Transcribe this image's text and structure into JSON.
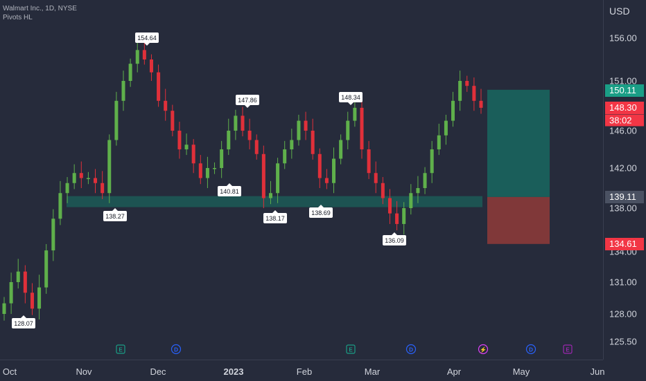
{
  "header": {
    "title": "Walmart Inc., 1D, NYSE",
    "indicator": "Pivots HL"
  },
  "price_axis": {
    "currency": "USD",
    "ticks": [
      "156.00",
      "151.00",
      "146.00",
      "142.00",
      "138.00",
      "134.00",
      "131.00",
      "128.00",
      "125.50"
    ],
    "labels": [
      {
        "value": "150.11",
        "color": "#1a9e86"
      },
      {
        "value": "148.30",
        "color": "#f23645"
      },
      {
        "value": "38:02",
        "color": "#f23645"
      },
      {
        "value": "139.11",
        "color": "#4a5162"
      },
      {
        "value": "134.61",
        "color": "#f23645"
      }
    ]
  },
  "time_axis": {
    "ticks": [
      {
        "label": "Oct",
        "bold": false
      },
      {
        "label": "Nov",
        "bold": false
      },
      {
        "label": "Dec",
        "bold": false
      },
      {
        "label": "2023",
        "bold": true
      },
      {
        "label": "Feb",
        "bold": false
      },
      {
        "label": "Mar",
        "bold": false
      },
      {
        "label": "Apr",
        "bold": false
      },
      {
        "label": "May",
        "bold": false
      },
      {
        "label": "Jun",
        "bold": false
      }
    ]
  },
  "pivots": [
    {
      "label": "154.64",
      "type": "high"
    },
    {
      "label": "147.86",
      "type": "high"
    },
    {
      "label": "148.34",
      "type": "high"
    },
    {
      "label": "138.27",
      "type": "low"
    },
    {
      "label": "140.81",
      "type": "low"
    },
    {
      "label": "138.17",
      "type": "low"
    },
    {
      "label": "138.69",
      "type": "low"
    },
    {
      "label": "136.09",
      "type": "low"
    },
    {
      "label": "128.07",
      "type": "low"
    }
  ],
  "events": [
    {
      "letter": "E",
      "color": "#1a9e86"
    },
    {
      "letter": "D",
      "color": "#2962ff"
    },
    {
      "letter": "E",
      "color": "#1a9e86"
    },
    {
      "letter": "D",
      "color": "#2962ff"
    },
    {
      "letter": "⚡",
      "color": "#e040fb"
    },
    {
      "letter": "D",
      "color": "#2962ff"
    },
    {
      "letter": "E",
      "color": "#9c27b0"
    }
  ],
  "position": {
    "type": "long",
    "entry": 139.11,
    "target": 150.11,
    "stop": 134.61,
    "last_price": 148.3
  },
  "support_zone": {
    "low": 138.1,
    "high": 139.2
  },
  "colors": {
    "background": "#262b3b",
    "up": "#5fb04b",
    "down": "#e0303a",
    "profit": "#1a5e5a",
    "loss": "#803839",
    "zone": "#1c5a57"
  },
  "chart_data": {
    "type": "candlestick",
    "title": "Walmart Inc., 1D, NYSE",
    "y_axis": "USD",
    "x_axis": "Oct – Jun",
    "ohlc_closes_approx": [
      129,
      131,
      132,
      130,
      128.5,
      130.5,
      134,
      137,
      139.5,
      140.5,
      141.5,
      141,
      141,
      140.5,
      139.5,
      145,
      149,
      151,
      153,
      154.6,
      153.5,
      152,
      149,
      148,
      146,
      144,
      144.5,
      142.5,
      141,
      142,
      142,
      144,
      146,
      147.5,
      146,
      145,
      143.5,
      139,
      139.5,
      142.5,
      144,
      145,
      147,
      146,
      143.5,
      141,
      140.5,
      143,
      145,
      147,
      148.3,
      144,
      141.5,
      140.5,
      139,
      137.5,
      136.5,
      138,
      139.5,
      140,
      141.5,
      144,
      145.5,
      147,
      149,
      151,
      150.5,
      149,
      148.3
    ]
  }
}
